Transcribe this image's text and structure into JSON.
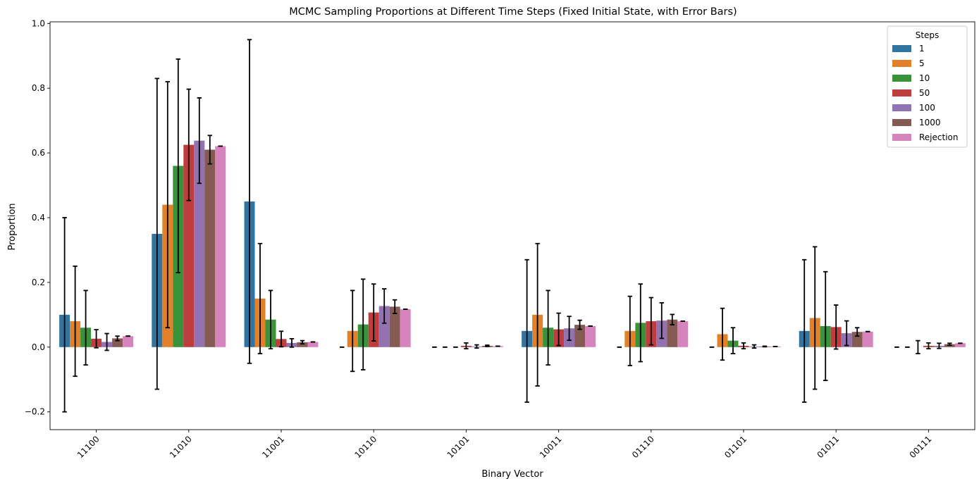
{
  "chart_data": {
    "type": "bar",
    "title": "MCMC Sampling Proportions at Different Time Steps (Fixed Initial State, with Error Bars)",
    "xlabel": "Binary Vector",
    "ylabel": "Proportion",
    "ylim": [
      -0.255,
      1.005
    ],
    "yticks": [
      -0.2,
      0.0,
      0.2,
      0.4,
      0.6,
      0.8,
      1.0
    ],
    "ytick_labels": [
      "−0.2",
      "0.0",
      "0.2",
      "0.4",
      "0.6",
      "0.8",
      "1.0"
    ],
    "grid": false,
    "legend_position": "top-right",
    "legend_title": "Steps",
    "categories": [
      "11100",
      "11010",
      "11001",
      "10110",
      "10101",
      "10011",
      "01110",
      "01101",
      "01011",
      "00111"
    ],
    "series": [
      {
        "name": "1",
        "color": "#3274a1",
        "values": [
          0.1,
          0.35,
          0.45,
          0.0,
          0.0,
          0.05,
          0.0,
          0.0,
          0.05,
          0.0
        ],
        "errors": [
          0.3,
          0.48,
          0.5,
          0.0,
          0.0,
          0.22,
          0.0,
          0.0,
          0.22,
          0.0
        ]
      },
      {
        "name": "5",
        "color": "#e1812c",
        "values": [
          0.08,
          0.44,
          0.15,
          0.05,
          0.0,
          0.1,
          0.05,
          0.04,
          0.09,
          0.0
        ],
        "errors": [
          0.17,
          0.38,
          0.17,
          0.125,
          0.0,
          0.22,
          0.107,
          0.08,
          0.22,
          0.0
        ]
      },
      {
        "name": "10",
        "color": "#3a923a",
        "values": [
          0.06,
          0.56,
          0.085,
          0.07,
          0.0,
          0.06,
          0.075,
          0.02,
          0.065,
          0.0
        ],
        "errors": [
          0.115,
          0.33,
          0.09,
          0.14,
          0.0,
          0.115,
          0.12,
          0.04,
          0.168,
          0.02
        ]
      },
      {
        "name": "50",
        "color": "#c03d3e",
        "values": [
          0.026,
          0.625,
          0.025,
          0.107,
          0.004,
          0.055,
          0.08,
          0.004,
          0.062,
          0.004
        ],
        "errors": [
          0.028,
          0.172,
          0.024,
          0.088,
          0.009,
          0.05,
          0.073,
          0.009,
          0.068,
          0.009
        ]
      },
      {
        "name": "100",
        "color": "#9372b2",
        "values": [
          0.016,
          0.638,
          0.013,
          0.127,
          0.002,
          0.058,
          0.082,
          0.002,
          0.043,
          0.004
        ],
        "errors": [
          0.026,
          0.132,
          0.013,
          0.053,
          0.005,
          0.037,
          0.055,
          0.005,
          0.038,
          0.008
        ]
      },
      {
        "name": "1000",
        "color": "#845b53",
        "values": [
          0.027,
          0.61,
          0.015,
          0.125,
          0.004,
          0.069,
          0.085,
          0.002,
          0.047,
          0.009
        ],
        "errors": [
          0.007,
          0.044,
          0.005,
          0.021,
          0.002,
          0.014,
          0.016,
          0.001,
          0.013,
          0.003
        ]
      },
      {
        "name": "Rejection",
        "color": "#d684bd",
        "values": [
          0.034,
          0.621,
          0.016,
          0.117,
          0.003,
          0.065,
          0.08,
          0.002,
          0.048,
          0.012
        ],
        "errors": [
          0,
          0,
          0,
          0,
          0,
          0,
          0,
          0,
          0,
          0
        ]
      }
    ]
  }
}
